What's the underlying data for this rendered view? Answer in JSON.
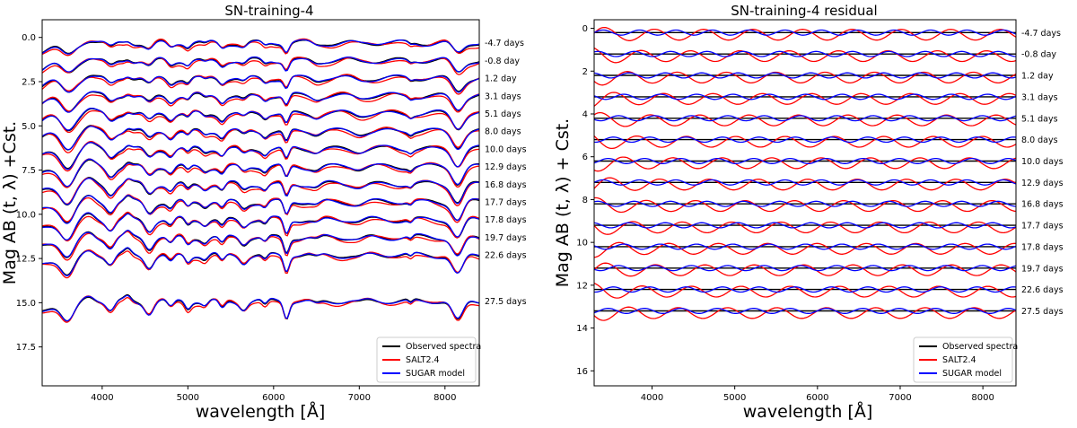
{
  "chart_data": [
    {
      "type": "line",
      "title": "SN-training-4",
      "xlabel": "wavelength [Å]",
      "ylabel": "Mag AB (t, λ) +Cst.",
      "xlim": [
        3300,
        8400
      ],
      "ylim": [
        19.7,
        -1.0
      ],
      "y_inverted": true,
      "x_ticks": [
        "4000",
        "5000",
        "6000",
        "7000",
        "8000"
      ],
      "x_tick_values": [
        4000,
        5000,
        6000,
        7000,
        8000
      ],
      "y_ticks": [
        "0.0",
        "2.5",
        "5.0",
        "7.5",
        "10.0",
        "12.5",
        "15.0",
        "17.5"
      ],
      "y_tick_values": [
        0,
        2.5,
        5.0,
        7.5,
        10.0,
        12.5,
        15.0,
        17.5
      ],
      "epochs": [
        "-4.7 days",
        "-0.8 day",
        "1.2 day",
        "3.1 days",
        "5.1 days",
        "8.0 days",
        "10.0 days",
        "12.9 days",
        "16.8 days",
        "17.7 days",
        "17.8 days",
        "19.7 days",
        "22.6 days",
        "27.5 days"
      ],
      "epoch_offsets": [
        0.3,
        1.3,
        2.3,
        3.3,
        4.3,
        5.3,
        6.3,
        7.3,
        8.3,
        9.3,
        10.3,
        11.3,
        12.3,
        14.9
      ],
      "series": [
        {
          "name": "Observed spectra",
          "color": "#000000"
        },
        {
          "name": "SALT2.4",
          "color": "#ff0000"
        },
        {
          "name": "SUGAR model",
          "color": "#0000ff"
        }
      ],
      "legend": "lower-right",
      "grid": false
    },
    {
      "type": "line",
      "title": "SN-training-4 residual",
      "xlabel": "wavelength [Å]",
      "ylabel": "Mag AB (t, λ) + Cst.",
      "xlim": [
        3300,
        8400
      ],
      "ylim": [
        16.7,
        -0.4
      ],
      "y_inverted": true,
      "x_ticks": [
        "4000",
        "5000",
        "6000",
        "7000",
        "8000"
      ],
      "x_tick_values": [
        4000,
        5000,
        6000,
        7000,
        8000
      ],
      "y_ticks": [
        "0",
        "2",
        "4",
        "6",
        "8",
        "10",
        "12",
        "14",
        "16"
      ],
      "y_tick_values": [
        0,
        2,
        4,
        6,
        8,
        10,
        12,
        14,
        16
      ],
      "epochs": [
        "-4.7 days",
        "-0.8 day",
        "1.2 day",
        "3.1 days",
        "5.1 days",
        "8.0 days",
        "10.0 days",
        "12.9 days",
        "16.8 days",
        "17.7 days",
        "17.8 days",
        "19.7 days",
        "22.6 days",
        "27.5 days"
      ],
      "epoch_offsets": [
        0.2,
        1.2,
        2.2,
        3.2,
        4.2,
        5.2,
        6.2,
        7.2,
        8.2,
        9.2,
        10.2,
        11.2,
        12.2,
        13.2
      ],
      "series": [
        {
          "name": "Observed spectra",
          "color": "#000000"
        },
        {
          "name": "SALT2.4",
          "color": "#ff0000"
        },
        {
          "name": "SUGAR model",
          "color": "#0000ff"
        }
      ],
      "legend": "lower-right",
      "grid": false
    }
  ]
}
